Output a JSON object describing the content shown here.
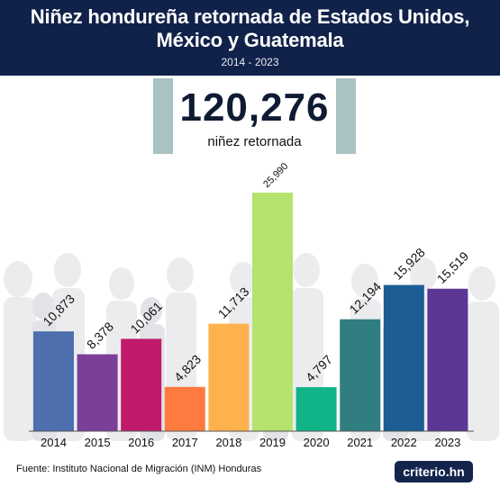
{
  "header": {
    "title_line1": "Niñez hondureña retornada de Estados Unidos,",
    "title_line2": "México y Guatemala",
    "subtitle": "2014 - 2023"
  },
  "total": {
    "value": "120,276",
    "label": "niñez retornada"
  },
  "chart_data": {
    "type": "bar",
    "categories": [
      "2014",
      "2015",
      "2016",
      "2017",
      "2018",
      "2019",
      "2020",
      "2021",
      "2022",
      "2023"
    ],
    "values": [
      10873,
      8378,
      10061,
      4823,
      11713,
      25990,
      4797,
      12194,
      15928,
      15519
    ],
    "value_labels": [
      "10,873",
      "8,378",
      "10,061",
      "4,823",
      "11,713",
      "25,990",
      "4,797",
      "12,194",
      "15,928",
      "15,519"
    ],
    "colors": [
      "#4e6fad",
      "#7b3f9a",
      "#c01a6a",
      "#ff7a3e",
      "#fdb24e",
      "#b5e36e",
      "#11b389",
      "#307e80",
      "#1b5d94",
      "#5b3694"
    ],
    "ylim": [
      0,
      25990
    ]
  },
  "footer": {
    "source": "Fuente: Instituto Nacional de Migración (INM) Honduras",
    "brand": "criterio.hn"
  }
}
